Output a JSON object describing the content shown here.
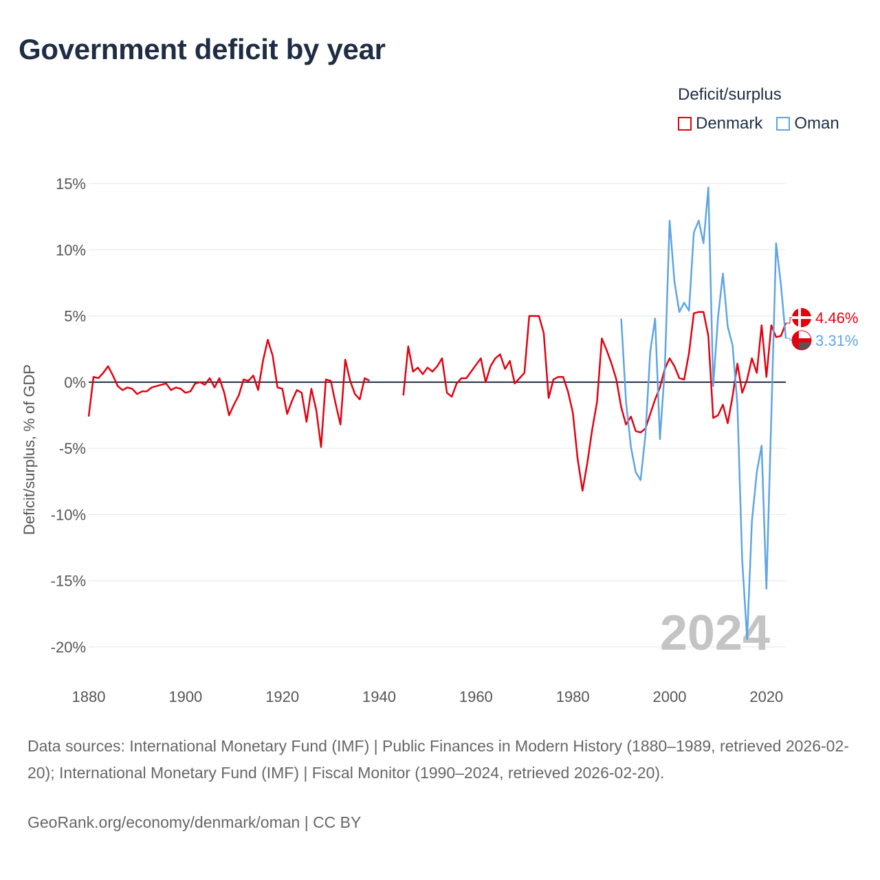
{
  "title": "Government deficit by year",
  "legend": {
    "title": "Deficit/surplus",
    "items": [
      {
        "label": "Denmark",
        "color": "#e3000f"
      },
      {
        "label": "Oman",
        "color": "#5ea4e6"
      }
    ]
  },
  "chart_data": {
    "type": "line",
    "title": "Government deficit by year",
    "xlabel": "",
    "ylabel": "Deficit/surplus, % of GDP",
    "xlim": [
      1880,
      2024
    ],
    "ylim": [
      -22,
      16
    ],
    "x_ticks": [
      1880,
      1900,
      1920,
      1940,
      1960,
      1980,
      2000,
      2020
    ],
    "y_ticks": [
      15,
      10,
      5,
      0,
      -5,
      -10,
      -15,
      -20
    ],
    "y_tick_labels": [
      "15%",
      "10%",
      "5%",
      "0%",
      "-5%",
      "-10%",
      "-15%",
      "-20%"
    ],
    "year_watermark": "2024",
    "series": [
      {
        "name": "Denmark",
        "color": "#e3000f",
        "end_label": "4.46%",
        "points": [
          [
            1880,
            -2.6
          ],
          [
            1881,
            0.4
          ],
          [
            1882,
            0.3
          ],
          [
            1883,
            0.7
          ],
          [
            1884,
            1.2
          ],
          [
            1885,
            0.5
          ],
          [
            1886,
            -0.3
          ],
          [
            1887,
            -0.6
          ],
          [
            1888,
            -0.4
          ],
          [
            1889,
            -0.5
          ],
          [
            1890,
            -0.9
          ],
          [
            1891,
            -0.7
          ],
          [
            1892,
            -0.7
          ],
          [
            1893,
            -0.4
          ],
          [
            1894,
            -0.3
          ],
          [
            1895,
            -0.2
          ],
          [
            1896,
            -0.1
          ],
          [
            1897,
            -0.6
          ],
          [
            1898,
            -0.4
          ],
          [
            1899,
            -0.5
          ],
          [
            1900,
            -0.8
          ],
          [
            1901,
            -0.7
          ],
          [
            1902,
            -0.1
          ],
          [
            1903,
            0.0
          ],
          [
            1904,
            -0.2
          ],
          [
            1905,
            0.3
          ],
          [
            1906,
            -0.4
          ],
          [
            1907,
            0.3
          ],
          [
            1908,
            -0.8
          ],
          [
            1909,
            -2.5
          ],
          [
            1910,
            -1.7
          ],
          [
            1911,
            -1.0
          ],
          [
            1912,
            0.2
          ],
          [
            1913,
            0.1
          ],
          [
            1914,
            0.5
          ],
          [
            1915,
            -0.6
          ],
          [
            1916,
            1.6
          ],
          [
            1917,
            3.2
          ],
          [
            1918,
            2.0
          ],
          [
            1919,
            -0.4
          ],
          [
            1920,
            -0.5
          ],
          [
            1921,
            -2.4
          ],
          [
            1922,
            -1.4
          ],
          [
            1923,
            -0.6
          ],
          [
            1924,
            -0.8
          ],
          [
            1925,
            -3.0
          ],
          [
            1926,
            -0.5
          ],
          [
            1927,
            -2.1
          ],
          [
            1928,
            -4.9
          ],
          [
            1929,
            0.2
          ],
          [
            1930,
            0.1
          ],
          [
            1931,
            -1.6
          ],
          [
            1932,
            -3.2
          ],
          [
            1933,
            1.7
          ],
          [
            1934,
            0.1
          ],
          [
            1935,
            -0.9
          ],
          [
            1936,
            -1.3
          ],
          [
            1937,
            0.3
          ],
          [
            1938,
            0.1
          ],
          [
            1945,
            -1.0
          ],
          [
            1946,
            2.7
          ],
          [
            1947,
            0.8
          ],
          [
            1948,
            1.1
          ],
          [
            1949,
            0.6
          ],
          [
            1950,
            1.1
          ],
          [
            1951,
            0.8
          ],
          [
            1952,
            1.2
          ],
          [
            1953,
            1.8
          ],
          [
            1954,
            -0.8
          ],
          [
            1955,
            -1.1
          ],
          [
            1956,
            -0.1
          ],
          [
            1957,
            0.3
          ],
          [
            1958,
            0.3
          ],
          [
            1959,
            0.8
          ],
          [
            1960,
            1.3
          ],
          [
            1961,
            1.8
          ],
          [
            1962,
            0.0
          ],
          [
            1963,
            1.2
          ],
          [
            1964,
            1.8
          ],
          [
            1965,
            2.1
          ],
          [
            1966,
            1.0
          ],
          [
            1967,
            1.6
          ],
          [
            1968,
            -0.1
          ],
          [
            1969,
            0.3
          ],
          [
            1970,
            0.7
          ],
          [
            1971,
            5.0
          ],
          [
            1972,
            5.0
          ],
          [
            1973,
            5.0
          ],
          [
            1974,
            3.7
          ],
          [
            1975,
            -1.2
          ],
          [
            1976,
            0.2
          ],
          [
            1977,
            0.4
          ],
          [
            1978,
            0.4
          ],
          [
            1979,
            -0.7
          ],
          [
            1980,
            -2.3
          ],
          [
            1981,
            -5.8
          ],
          [
            1982,
            -8.2
          ],
          [
            1983,
            -6.1
          ],
          [
            1984,
            -3.6
          ],
          [
            1985,
            -1.5
          ],
          [
            1986,
            3.3
          ],
          [
            1987,
            2.4
          ],
          [
            1988,
            1.4
          ],
          [
            1989,
            0.2
          ],
          [
            1990,
            -1.9
          ],
          [
            1991,
            -3.2
          ],
          [
            1992,
            -2.6
          ],
          [
            1993,
            -3.7
          ],
          [
            1994,
            -3.8
          ],
          [
            1995,
            -3.5
          ],
          [
            1996,
            -2.4
          ],
          [
            1997,
            -1.3
          ],
          [
            1998,
            -0.4
          ],
          [
            1999,
            1.0
          ],
          [
            2000,
            1.8
          ],
          [
            2001,
            1.2
          ],
          [
            2002,
            0.3
          ],
          [
            2003,
            0.2
          ],
          [
            2004,
            2.2
          ],
          [
            2005,
            5.2
          ],
          [
            2006,
            5.3
          ],
          [
            2007,
            5.3
          ],
          [
            2008,
            3.5
          ],
          [
            2009,
            -2.7
          ],
          [
            2010,
            -2.5
          ],
          [
            2011,
            -1.7
          ],
          [
            2012,
            -3.1
          ],
          [
            2013,
            -1.1
          ],
          [
            2014,
            1.4
          ],
          [
            2015,
            -0.8
          ],
          [
            2016,
            0.2
          ],
          [
            2017,
            1.8
          ],
          [
            2018,
            0.7
          ],
          [
            2019,
            4.3
          ],
          [
            2020,
            0.4
          ],
          [
            2021,
            4.3
          ],
          [
            2022,
            3.4
          ],
          [
            2023,
            3.5
          ],
          [
            2024,
            4.46
          ]
        ]
      },
      {
        "name": "Oman",
        "color": "#5ea4e6",
        "end_label": "3.31%",
        "points": [
          [
            1990,
            4.8
          ],
          [
            1991,
            -1.5
          ],
          [
            1992,
            -4.9
          ],
          [
            1993,
            -6.8
          ],
          [
            1994,
            -7.4
          ],
          [
            1995,
            -4.0
          ],
          [
            1996,
            2.3
          ],
          [
            1997,
            4.8
          ],
          [
            1998,
            -4.3
          ],
          [
            1999,
            1.0
          ],
          [
            2000,
            12.2
          ],
          [
            2001,
            7.6
          ],
          [
            2002,
            5.3
          ],
          [
            2003,
            6.0
          ],
          [
            2004,
            5.4
          ],
          [
            2005,
            11.3
          ],
          [
            2006,
            12.2
          ],
          [
            2007,
            10.5
          ],
          [
            2008,
            14.7
          ],
          [
            2009,
            -0.3
          ],
          [
            2010,
            4.9
          ],
          [
            2011,
            8.2
          ],
          [
            2012,
            4.2
          ],
          [
            2013,
            2.8
          ],
          [
            2014,
            -1.7
          ],
          [
            2015,
            -13.5
          ],
          [
            2016,
            -19.4
          ],
          [
            2017,
            -10.5
          ],
          [
            2018,
            -6.8
          ],
          [
            2019,
            -4.8
          ],
          [
            2020,
            -15.6
          ],
          [
            2021,
            -2.6
          ],
          [
            2022,
            10.5
          ],
          [
            2023,
            7.3
          ],
          [
            2024,
            3.31
          ]
        ]
      }
    ]
  },
  "footer": {
    "sources": "Data sources: International Monetary Fund (IMF) | Public Finances in Modern History (1880–1989, retrieved 2026-02-20); International Monetary Fund (IMF) | Fiscal Monitor (1990–2024, retrieved 2026-02-20).",
    "credit": "GeoRank.org/economy/denmark/oman | CC BY"
  }
}
